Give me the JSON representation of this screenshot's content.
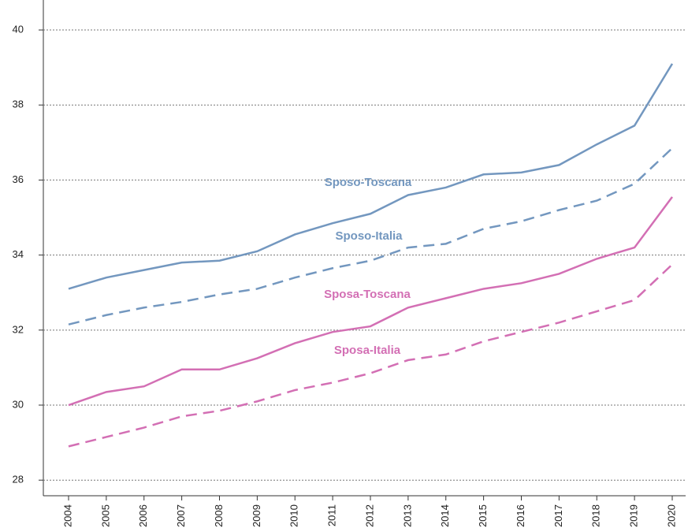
{
  "chart_data": {
    "type": "line",
    "categories": [
      "2004",
      "2005",
      "2006",
      "2007",
      "2008",
      "2009",
      "2010",
      "2011",
      "2012",
      "2013",
      "2014",
      "2015",
      "2016",
      "2017",
      "2018",
      "2019",
      "2020"
    ],
    "series": [
      {
        "name": "Sposo-Toscana",
        "color": "#7397bf",
        "dash": false,
        "values": [
          33.1,
          33.4,
          33.6,
          33.8,
          33.85,
          34.1,
          34.55,
          34.85,
          35.1,
          35.6,
          35.8,
          36.15,
          36.2,
          36.4,
          36.95,
          37.45,
          39.1
        ]
      },
      {
        "name": "Sposo-Italia",
        "color": "#7397bf",
        "dash": true,
        "values": [
          32.15,
          32.4,
          32.6,
          32.75,
          32.95,
          33.1,
          33.4,
          33.65,
          33.85,
          34.2,
          34.3,
          34.7,
          34.9,
          35.2,
          35.45,
          35.9,
          36.85
        ]
      },
      {
        "name": "Sposa-Toscana",
        "color": "#d36fb4",
        "dash": false,
        "values": [
          30.0,
          30.35,
          30.5,
          30.95,
          30.95,
          31.25,
          31.65,
          31.95,
          32.1,
          32.6,
          32.85,
          33.1,
          33.25,
          33.5,
          33.9,
          34.2,
          35.55
        ]
      },
      {
        "name": "Sposa-Italia",
        "color": "#d36fb4",
        "dash": true,
        "values": [
          28.9,
          29.15,
          29.4,
          29.7,
          29.85,
          30.1,
          30.4,
          30.6,
          30.85,
          31.2,
          31.35,
          31.7,
          31.95,
          32.2,
          32.5,
          32.8,
          33.75
        ]
      }
    ],
    "ylim": [
      27.5,
      40.4
    ],
    "yticks": [
      28,
      30,
      32,
      34,
      36,
      38,
      40
    ],
    "grid": true
  }
}
